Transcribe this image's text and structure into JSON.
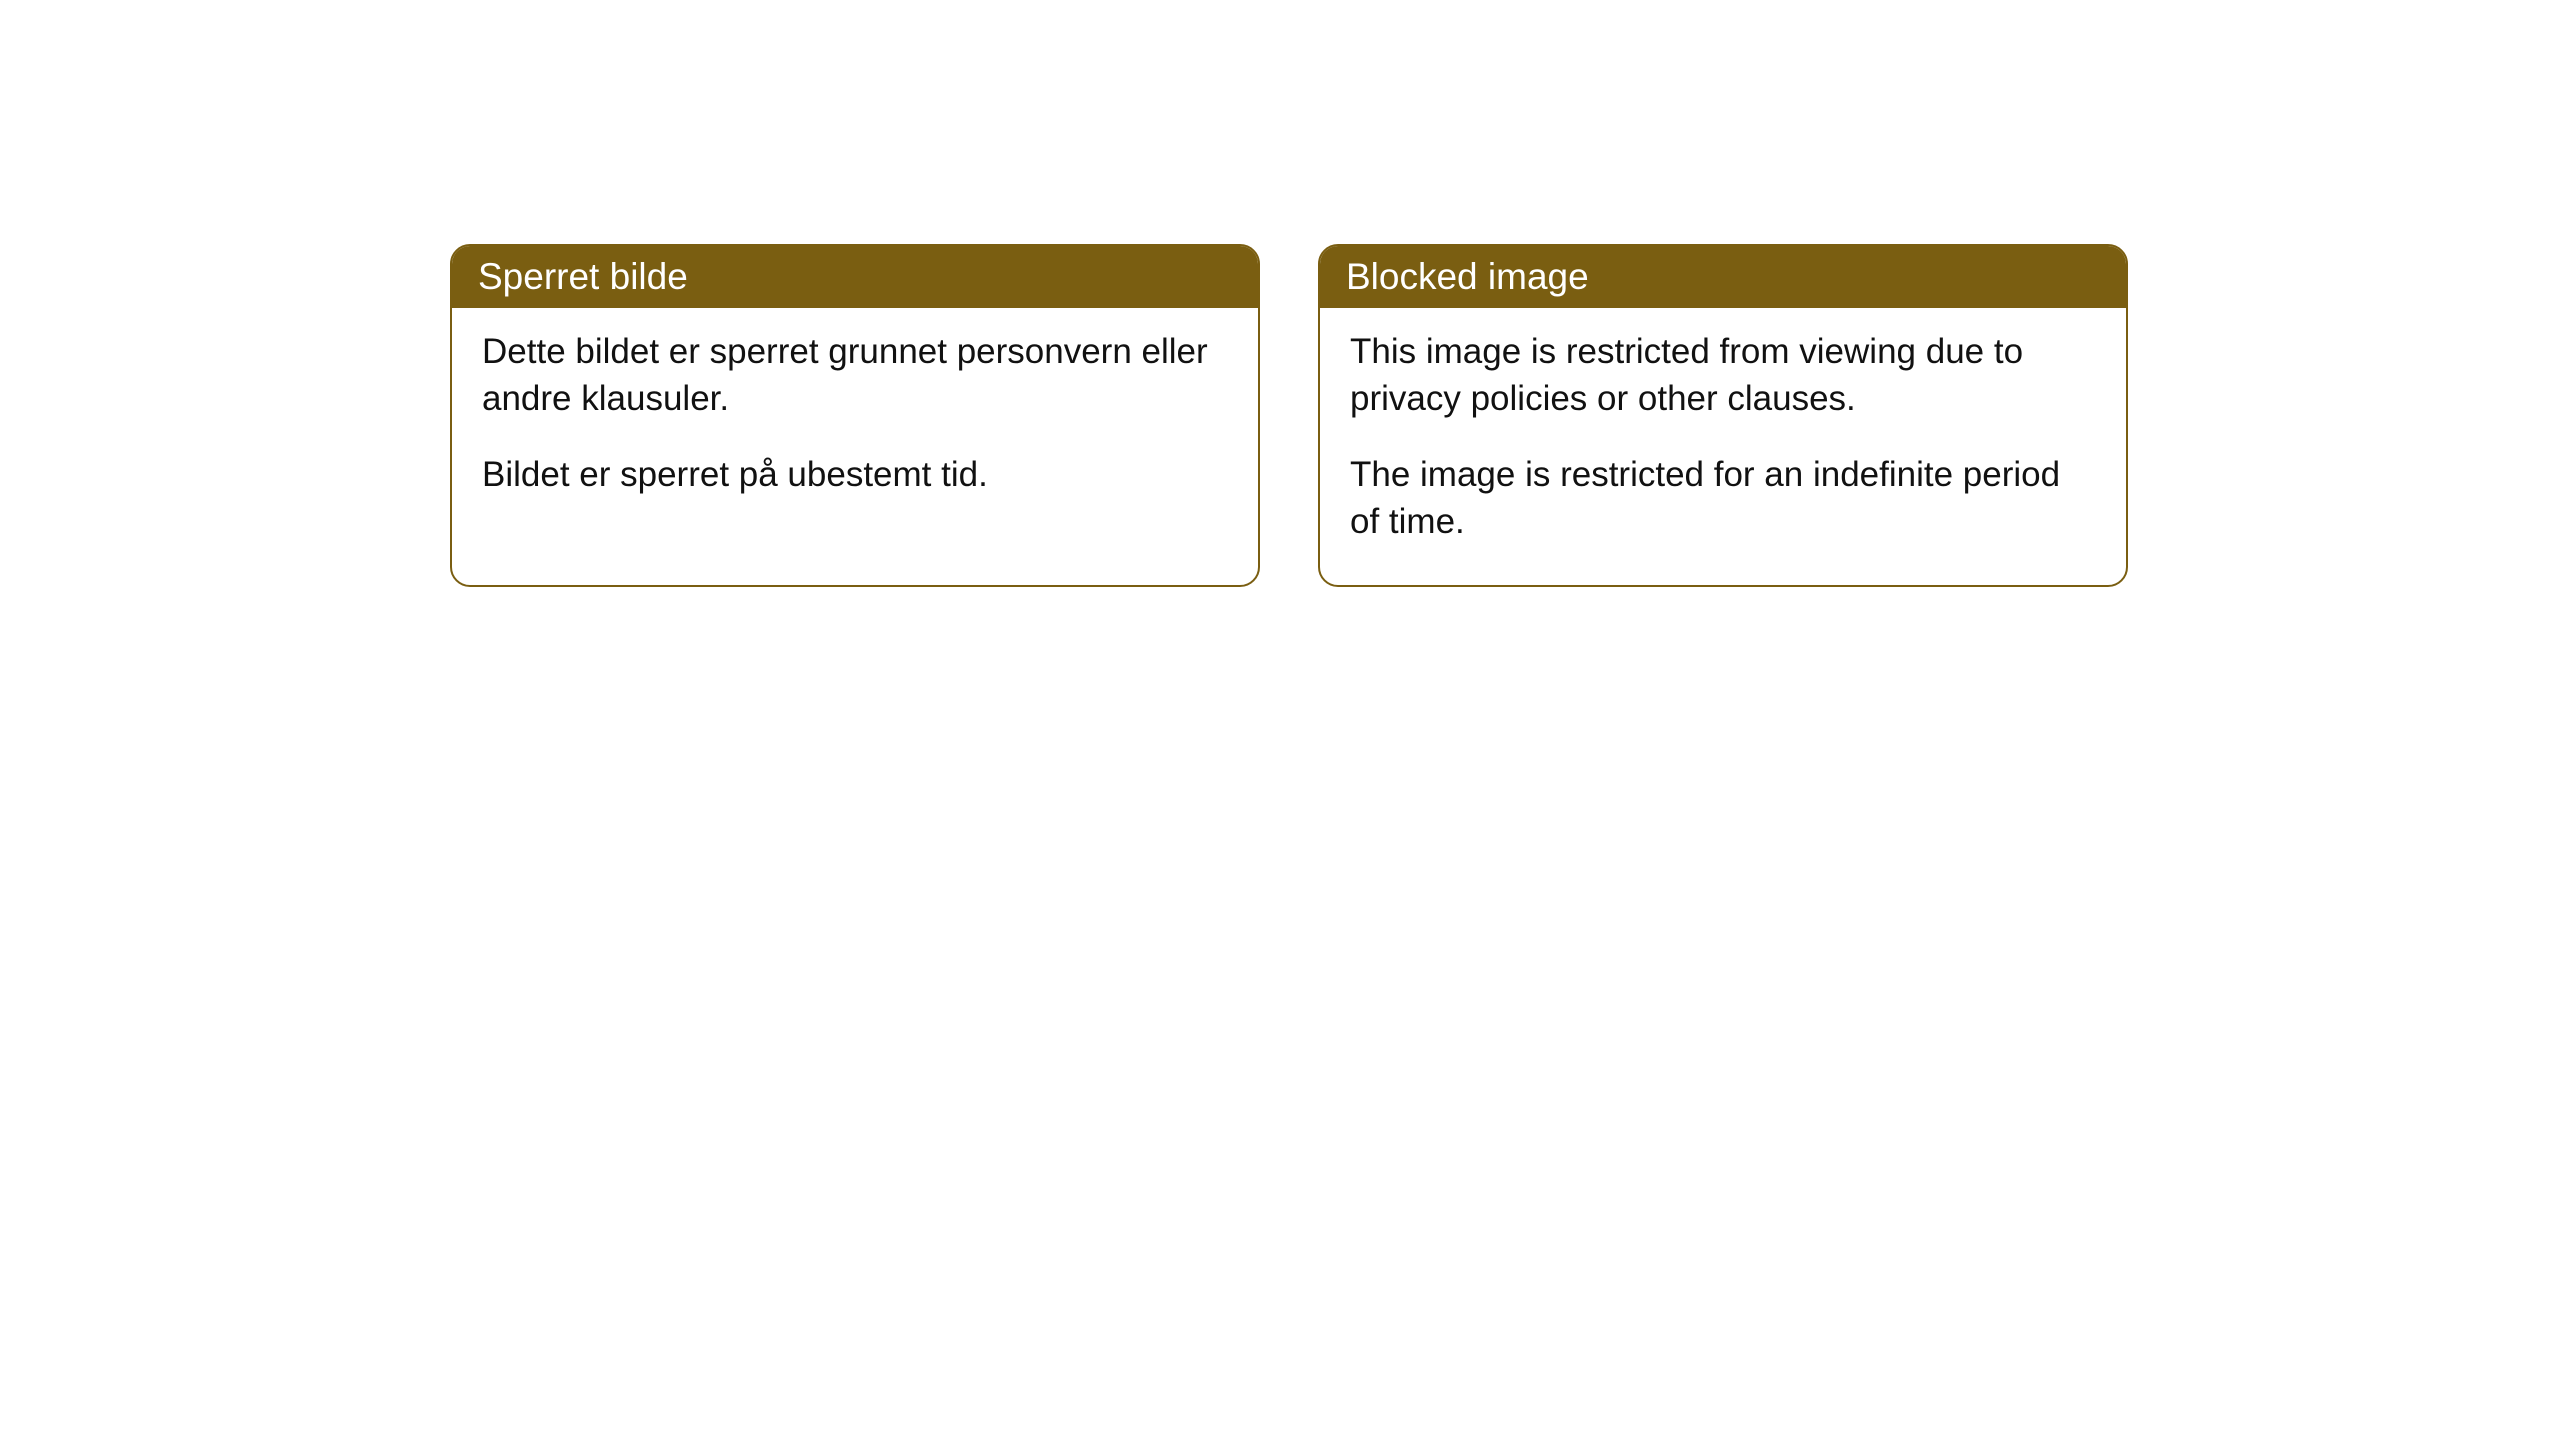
{
  "notices": {
    "norwegian": {
      "title": "Sperret bilde",
      "paragraph1": "Dette bildet er sperret grunnet personvern eller andre klausuler.",
      "paragraph2": "Bildet er sperret på ubestemt tid."
    },
    "english": {
      "title": "Blocked image",
      "paragraph1": "This image is restricted from viewing due to privacy policies or other clauses.",
      "paragraph2": "The image is restricted for an indefinite period of time."
    }
  },
  "styling": {
    "header_bg_color": "#7a5e11",
    "header_text_color": "#ffffff",
    "border_color": "#7a5e11",
    "body_bg_color": "#ffffff",
    "body_text_color": "#111111",
    "border_radius": 20,
    "title_fontsize": 37,
    "body_fontsize": 35
  }
}
